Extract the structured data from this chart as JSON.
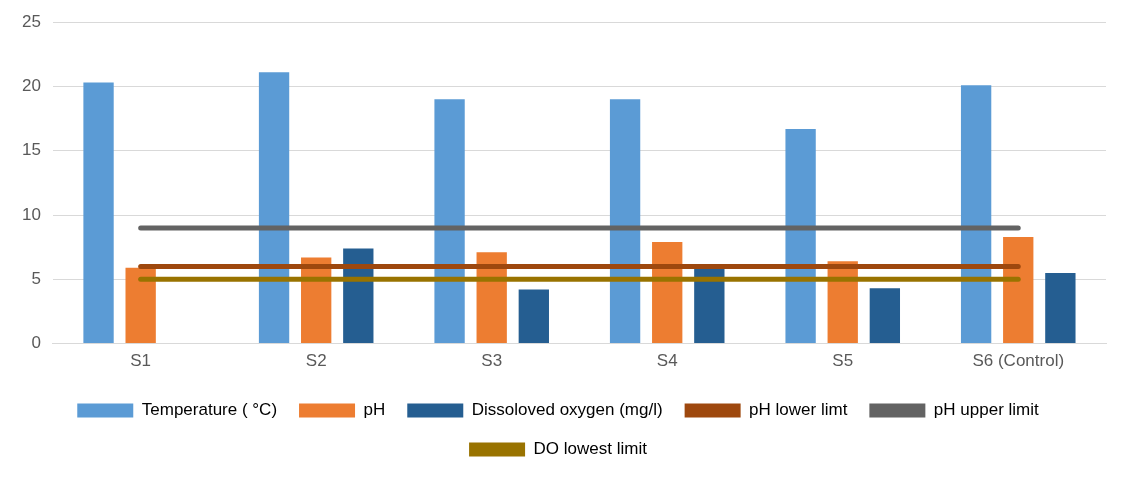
{
  "chart_data": {
    "type": "bar",
    "categories": [
      "S1",
      "S2",
      "S3",
      "S4",
      "S5",
      "S6 (Control)"
    ],
    "series": [
      {
        "name": "Temperature ( °C)",
        "color": "#5b9bd5",
        "values": [
          20.3,
          21.1,
          19.0,
          19.0,
          16.7,
          20.1
        ]
      },
      {
        "name": "pH",
        "color": "#ed7d31",
        "values": [
          5.9,
          6.7,
          7.1,
          7.9,
          6.4,
          8.3
        ]
      },
      {
        "name": "Dissoloved oxygen (mg/l)",
        "color": "#255e91",
        "values": [
          null,
          7.4,
          4.2,
          5.9,
          4.3,
          5.5
        ]
      },
      {
        "name": "pH lower limt",
        "type": "line",
        "color": "#9e480e",
        "values": [
          6,
          6,
          6,
          6,
          6,
          6
        ]
      },
      {
        "name": "pH upper limit",
        "type": "line",
        "color": "#636363",
        "values": [
          9,
          9,
          9,
          9,
          9,
          9
        ]
      },
      {
        "name": "DO lowest limit",
        "type": "line",
        "color": "#997300",
        "values": [
          5,
          5,
          5,
          5,
          5,
          5
        ]
      }
    ],
    "ylim": [
      0,
      25
    ],
    "yticks": [
      0,
      5,
      10,
      15,
      20,
      25
    ],
    "grid": "y",
    "legend": "bottom",
    "marker": "none",
    "line_style": "solid"
  }
}
